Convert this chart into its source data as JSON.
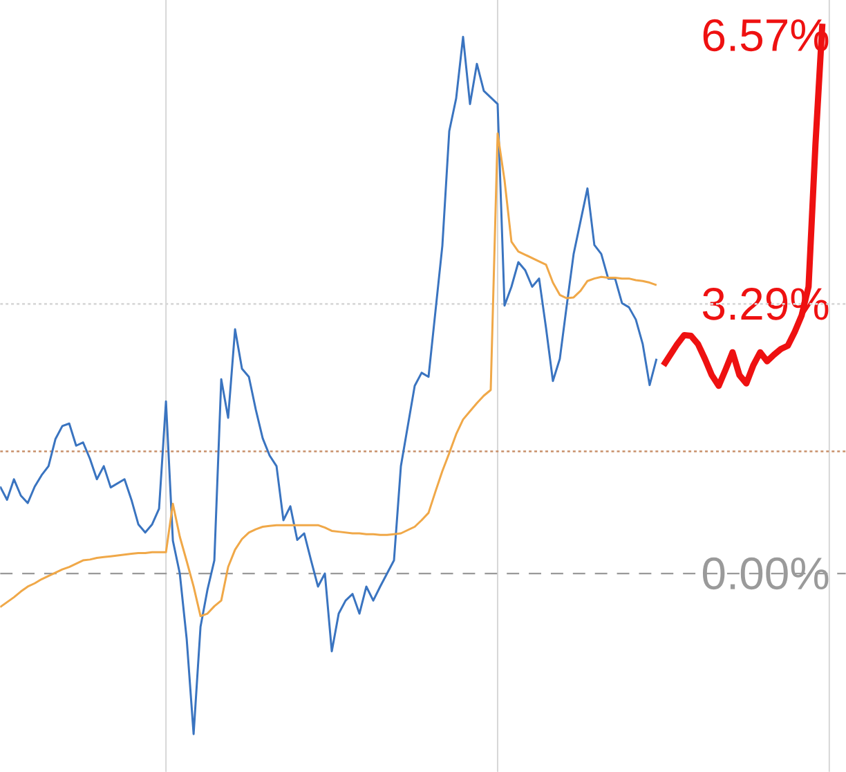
{
  "chart_data": {
    "type": "line",
    "categories": [
      null,
      null,
      null,
      null,
      null,
      null,
      null,
      null,
      null,
      null,
      null,
      null,
      null,
      null,
      null,
      null,
      null,
      null,
      null,
      null,
      null,
      null,
      null,
      null,
      null,
      null,
      null,
      null,
      null,
      null,
      null,
      null,
      null,
      null,
      null,
      null,
      null,
      null,
      null,
      null,
      null,
      null,
      null,
      null,
      null,
      null,
      null,
      null,
      null,
      null,
      null,
      null,
      null,
      null,
      null,
      null,
      null,
      null,
      null,
      null,
      null,
      null,
      null,
      null,
      null,
      null,
      null,
      null,
      null,
      null,
      null,
      null,
      null,
      null,
      null,
      null,
      null,
      null,
      null,
      null,
      null,
      null,
      null,
      null,
      null,
      null,
      null,
      null,
      null,
      null,
      null,
      null,
      null,
      null,
      null,
      null,
      null,
      null,
      null,
      null,
      null,
      null,
      null,
      null,
      null,
      null,
      null,
      null,
      null,
      null,
      null,
      null,
      null,
      null,
      null,
      null,
      null,
      null,
      null,
      null
    ],
    "ylim": [
      -2.42,
      7.0
    ],
    "yticks": [
      {
        "value": 0,
        "label": "0.00%"
      },
      {
        "value": 3.29,
        "label": "3.29%"
      },
      {
        "value": 6.57,
        "label": "6.57%"
      }
    ],
    "tick_labels": "y",
    "marker": "none",
    "line_style": "solid",
    "ref_lines": [
      {
        "axis": "y",
        "value": 0,
        "color": "#9a9a9a",
        "line_style": "dashed"
      },
      {
        "axis": "y",
        "value": 1.49,
        "color": "#c8906a",
        "line_style": "dotted"
      },
      {
        "axis": "y",
        "value": 3.29,
        "color": "#d8d8d8",
        "line_style": "dotted"
      }
    ],
    "series": [
      {
        "color": "#3a74c0",
        "values": [
          1.06,
          0.9,
          1.15,
          0.95,
          0.86,
          1.06,
          1.2,
          1.31,
          1.64,
          1.8,
          1.83,
          1.56,
          1.6,
          1.4,
          1.15,
          1.31,
          1.05,
          1.1,
          1.15,
          0.9,
          0.6,
          0.5,
          0.6,
          0.79,
          2.1,
          0.4,
          0.0,
          -0.8,
          -1.96,
          -0.65,
          -0.2,
          0.16,
          2.37,
          1.9,
          2.98,
          2.5,
          2.4,
          2.0,
          1.65,
          1.44,
          1.31,
          0.65,
          0.82,
          0.41,
          0.49,
          0.16,
          -0.16,
          0.0,
          -0.95,
          -0.49,
          -0.33,
          -0.25,
          -0.49,
          -0.16,
          -0.33,
          -0.16,
          0.0,
          0.16,
          1.31,
          1.8,
          2.29,
          2.45,
          2.4,
          3.2,
          4.0,
          5.4,
          5.8,
          6.55,
          5.73,
          6.22,
          5.89,
          5.81,
          5.73,
          3.27,
          3.5,
          3.8,
          3.7,
          3.5,
          3.6,
          3.0,
          2.35,
          2.62,
          3.27,
          3.9,
          4.3,
          4.7,
          4.01,
          3.9,
          3.6,
          3.6,
          3.3,
          3.25,
          3.1,
          2.8,
          2.3,
          2.62,
          null,
          null,
          null,
          null,
          null,
          null,
          null,
          null,
          null,
          null,
          null,
          null,
          null,
          null,
          null,
          null,
          null,
          null,
          null,
          null,
          null,
          null,
          null,
          null
        ]
      },
      {
        "color": "#f0a848",
        "values": [
          -0.41,
          -0.35,
          -0.29,
          -0.22,
          -0.16,
          -0.12,
          -0.07,
          -0.03,
          0.01,
          0.05,
          0.08,
          0.12,
          0.16,
          0.17,
          0.19,
          0.2,
          0.21,
          0.22,
          0.23,
          0.24,
          0.25,
          0.25,
          0.26,
          0.26,
          0.26,
          0.85,
          0.45,
          0.15,
          -0.16,
          -0.52,
          -0.49,
          -0.4,
          -0.33,
          0.08,
          0.29,
          0.42,
          0.5,
          0.54,
          0.57,
          0.58,
          0.59,
          0.59,
          0.59,
          0.59,
          0.59,
          0.59,
          0.59,
          0.56,
          0.52,
          0.51,
          0.5,
          0.49,
          0.49,
          0.48,
          0.48,
          0.47,
          0.47,
          0.48,
          0.49,
          0.53,
          0.57,
          0.65,
          0.74,
          1.0,
          1.25,
          1.47,
          1.7,
          1.88,
          1.98,
          2.08,
          2.17,
          2.24,
          5.37,
          4.8,
          4.05,
          3.93,
          3.89,
          3.85,
          3.81,
          3.77,
          3.55,
          3.4,
          3.36,
          3.37,
          3.45,
          3.57,
          3.6,
          3.62,
          3.61,
          3.61,
          3.6,
          3.6,
          3.58,
          3.57,
          3.55,
          3.52,
          null,
          null,
          null,
          null,
          null,
          null,
          null,
          null,
          null,
          null,
          null,
          null,
          null,
          null,
          null,
          null,
          null,
          null,
          null,
          null,
          null,
          null,
          null,
          null
        ]
      },
      {
        "color": "#ee1111",
        "values": [
          null,
          null,
          null,
          null,
          null,
          null,
          null,
          null,
          null,
          null,
          null,
          null,
          null,
          null,
          null,
          null,
          null,
          null,
          null,
          null,
          null,
          null,
          null,
          null,
          null,
          null,
          null,
          null,
          null,
          null,
          null,
          null,
          null,
          null,
          null,
          null,
          null,
          null,
          null,
          null,
          null,
          null,
          null,
          null,
          null,
          null,
          null,
          null,
          null,
          null,
          null,
          null,
          null,
          null,
          null,
          null,
          null,
          null,
          null,
          null,
          null,
          null,
          null,
          null,
          null,
          null,
          null,
          null,
          null,
          null,
          null,
          null,
          null,
          null,
          null,
          null,
          null,
          null,
          null,
          null,
          null,
          null,
          null,
          null,
          null,
          null,
          null,
          null,
          null,
          null,
          null,
          null,
          null,
          null,
          null,
          null,
          2.54,
          2.67,
          2.8,
          2.91,
          2.9,
          2.8,
          2.62,
          2.42,
          2.29,
          2.49,
          2.7,
          2.42,
          2.32,
          2.54,
          2.7,
          2.59,
          2.67,
          2.74,
          2.78,
          2.95,
          3.15,
          3.5,
          5.24,
          6.71
        ]
      }
    ]
  }
}
